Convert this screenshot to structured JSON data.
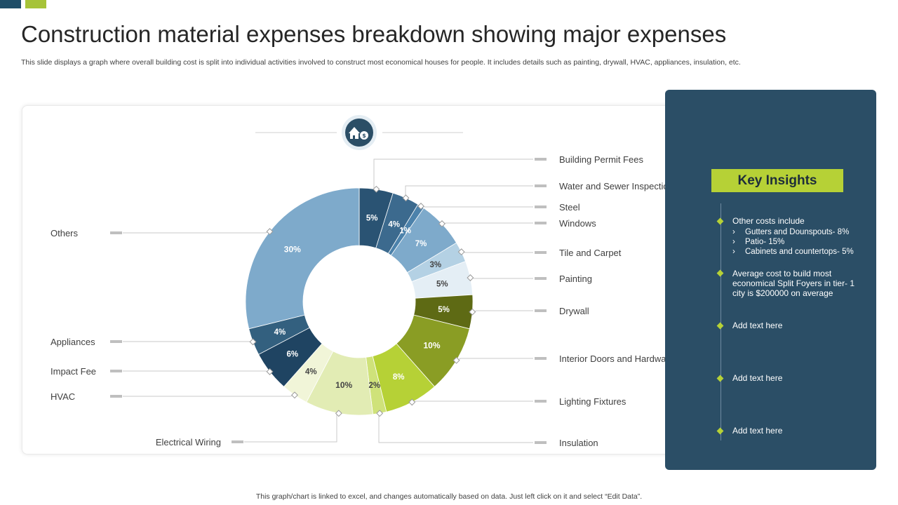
{
  "page": {
    "title": "Construction material expenses breakdown showing major expenses",
    "subtitle": "This slide displays a graph where overall building cost is split into individual activities involved to construct most economical houses for people. It includes details such as painting,  drywall, HVAC, appliances, insulation, etc.",
    "footer": "This graph/chart is linked to excel, and changes automatically based on data. Just left click on it and select “Edit Data”."
  },
  "icons": {
    "chart_top": "house-money-icon",
    "insights": "lightbulb-icon"
  },
  "insights": {
    "title": "Key Insights",
    "items": [
      "Other costs include",
      "Average cost to build most economical Split Foyers in tier- 1 city is $200000 on average",
      "Add text here",
      "Add text here",
      "Add text here"
    ],
    "sub_items": [
      "Gutters and Dounspouts- 8%",
      "Patio- 15%",
      "Cabinets and countertops- 5%"
    ],
    "arrow": "›"
  },
  "colors": {
    "panel": "#2b4e66",
    "accent": "#b6d136",
    "blue_dark": "#2a5373",
    "blue_light": "#7eaacb",
    "green_dark": "#5e6a14"
  },
  "chart_data": {
    "type": "pie",
    "title": "",
    "unit": "%",
    "categories": [
      "Building Permit Fees",
      "Water and Sewer Inspection",
      "Steel",
      "Windows",
      "Tile and Carpet",
      "Painting",
      "Drywall",
      "Interior Doors and Hardware",
      "Lighting Fixtures",
      "Insulation",
      "Electrical Wiring",
      "HVAC",
      "Impact Fee",
      "Appliances",
      "Others"
    ],
    "values": [
      5,
      4,
      1,
      7,
      3,
      5,
      5,
      10,
      8,
      2,
      10,
      4,
      6,
      4,
      30
    ],
    "labels": [
      "5%",
      "4%",
      "1%",
      "7%",
      "3%",
      "5%",
      "5%",
      "10%",
      "8%",
      "2%",
      "10%",
      "4%",
      "6%",
      "4%",
      "30%"
    ],
    "colors": [
      "#2a5373",
      "#3c6a8e",
      "#4c82ab",
      "#7eaacb",
      "#b4d1e4",
      "#e4eef5",
      "#5e6a14",
      "#8a9d24",
      "#b6d136",
      "#cfe27a",
      "#e2ecb4",
      "#f1f5d8",
      "#1f4462",
      "#33607f",
      "#7eaacb"
    ],
    "legend_position": "around"
  }
}
